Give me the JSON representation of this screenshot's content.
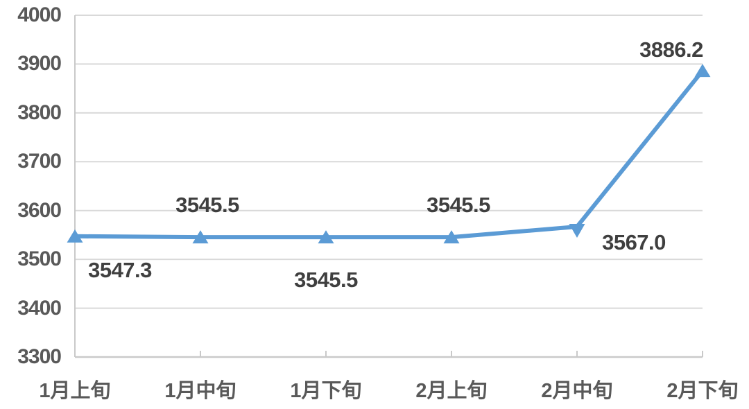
{
  "chart_data": {
    "type": "line",
    "categories": [
      "1月上旬",
      "1月中旬",
      "1月下旬",
      "2月上旬",
      "2月中旬",
      "2月下旬"
    ],
    "values": [
      3547.3,
      3545.5,
      3545.5,
      3545.5,
      3567.0,
      3886.2
    ],
    "data_labels": [
      "3547.3",
      "3545.5",
      "3545.5",
      "3545.5",
      "3567.0",
      "3886.2"
    ],
    "label_placements": [
      "below-right",
      "above",
      "below",
      "above",
      "right-below",
      "above-left"
    ],
    "marker_orientations": [
      "up",
      "up",
      "up",
      "up",
      "down",
      "up"
    ],
    "yticks": [
      3300,
      3400,
      3500,
      3600,
      3700,
      3800,
      3900,
      4000
    ],
    "ylim": [
      3300,
      4000
    ],
    "title": "",
    "xlabel": "",
    "ylabel": "",
    "grid": true,
    "legend": false,
    "colors": {
      "line": "#5B9BD5",
      "marker": "#5B9BD5",
      "axis_text": "#595959",
      "data_label_text": "#3F3F3F",
      "gridline": "#D9D9D9",
      "axis_line": "#C9C9C9",
      "tick": "#C9C9C9",
      "background": "#FFFFFF"
    }
  }
}
